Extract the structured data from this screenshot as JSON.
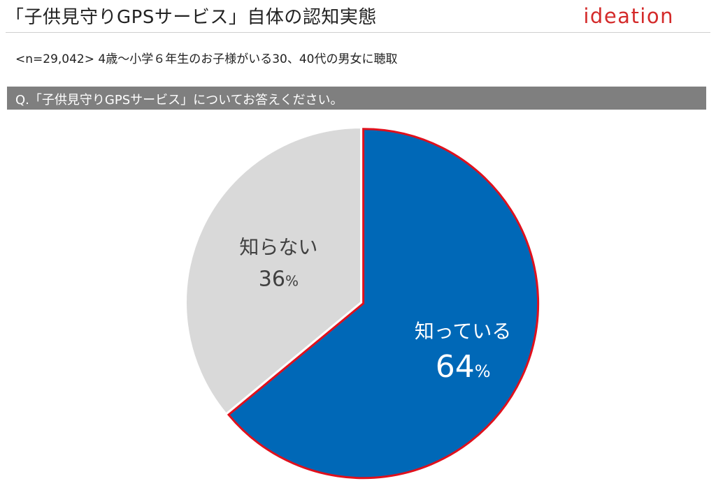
{
  "header": {
    "title": "「子供見守りGPSサービス」自体の認知実態",
    "logo_text": "ideation",
    "subtitle": "<n=29,042> 4歳〜小学６年生のお子様がいる30、40代の男女に聴取"
  },
  "question": {
    "text": "Q.「子供見守りGPSサービス」についてお答えください。"
  },
  "colors": {
    "known": "#0068b7",
    "known_border": "#e0101c",
    "unknown": "#d9d9d9",
    "question_bar": "#7f7f7f",
    "logo": "#d42a2a"
  },
  "chart_data": {
    "type": "pie",
    "start": "12 o'clock, clockwise",
    "slices": [
      {
        "label": "知っている",
        "value": 64,
        "value_text": "64",
        "unit": "%",
        "color": "#0068b7",
        "border": "#e0101c",
        "text_color": "#ffffff",
        "exploded": true
      },
      {
        "label": "知らない",
        "value": 36,
        "value_text": "36",
        "unit": "%",
        "color": "#d9d9d9",
        "border": "none",
        "text_color": "#404040",
        "exploded": false
      }
    ]
  }
}
